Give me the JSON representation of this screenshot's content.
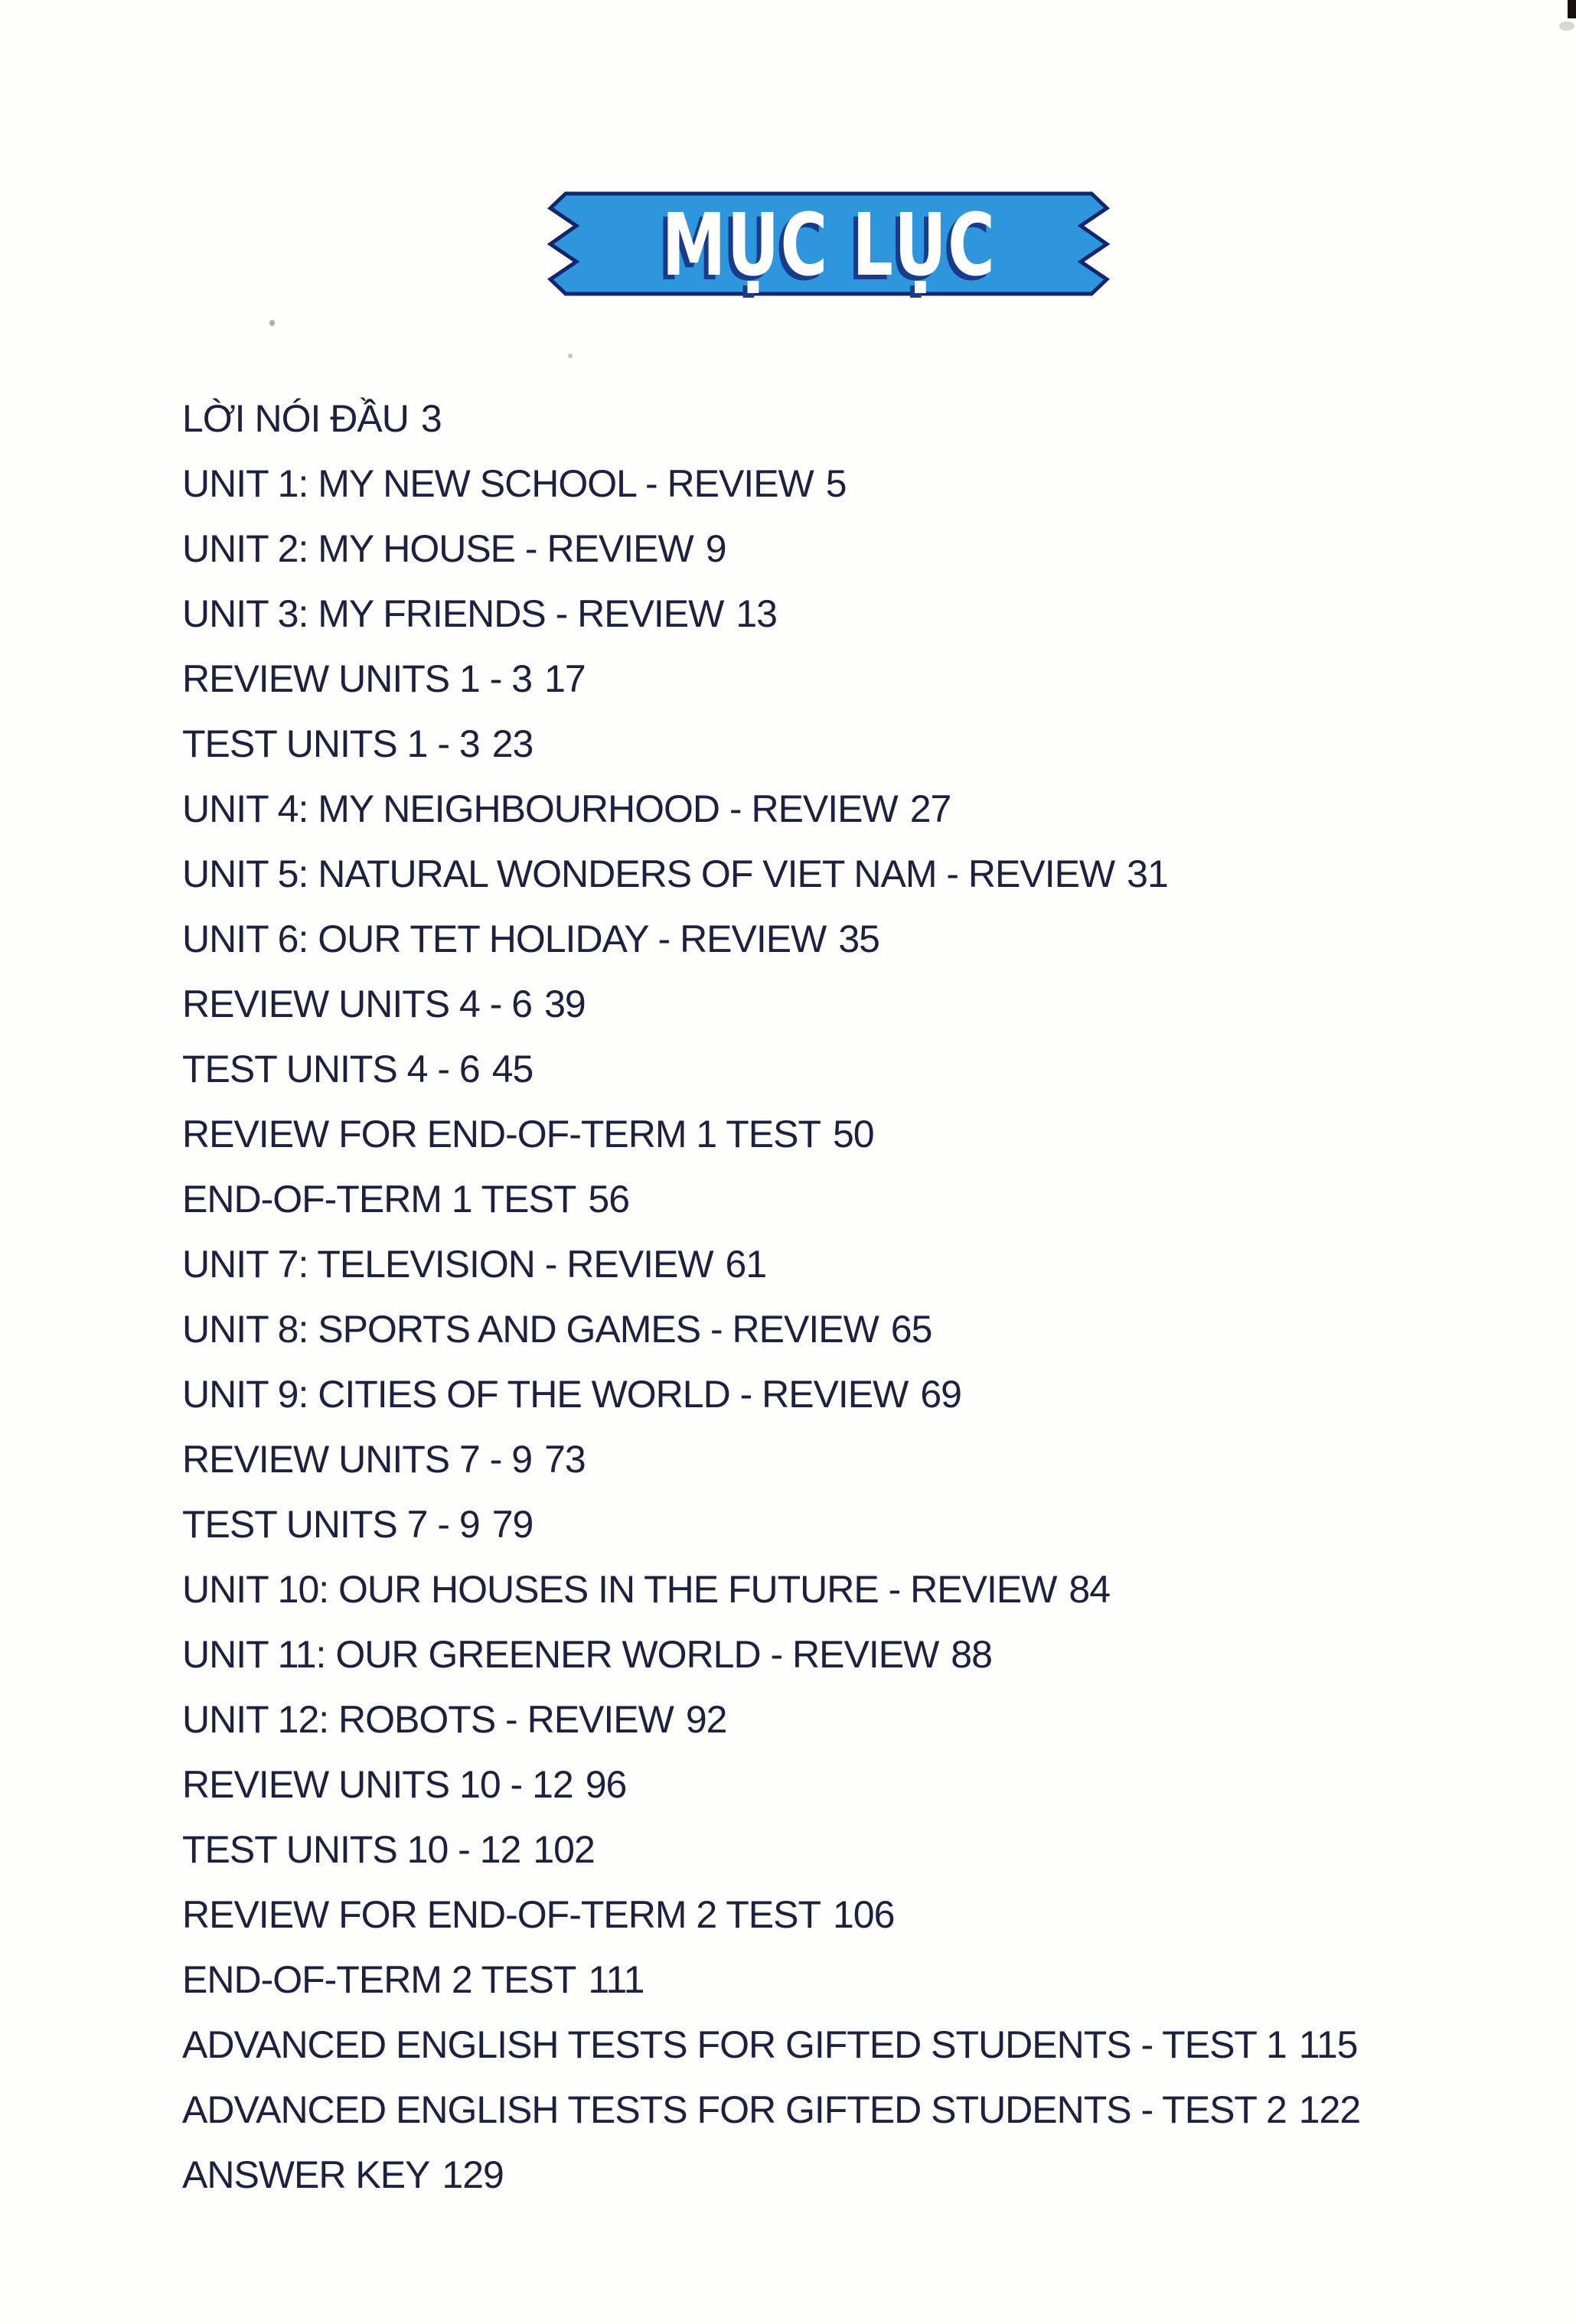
{
  "banner": {
    "title": "MỤC LỤC"
  },
  "colors": {
    "ribbon_fill": "#2e96dc",
    "ribbon_border": "#16246d",
    "banner_text": "#ffffff",
    "banner_text_shadow": "#1b3a8c",
    "body_text": "#1d2140"
  },
  "toc": {
    "entries": [
      {
        "label": "LỜI NÓI ĐẦU",
        "page": "3"
      },
      {
        "label": "UNIT 1: MY NEW SCHOOL - REVIEW",
        "page": "5"
      },
      {
        "label": "UNIT 2: MY HOUSE - REVIEW",
        "page": "9"
      },
      {
        "label": "UNIT 3: MY FRIENDS - REVIEW",
        "page": "13"
      },
      {
        "label": "REVIEW UNITS 1 - 3",
        "page": "17"
      },
      {
        "label": "TEST UNITS 1 - 3",
        "page": "23"
      },
      {
        "label": "UNIT 4: MY NEIGHBOURHOOD - REVIEW",
        "page": "27"
      },
      {
        "label": "UNIT 5: NATURAL WONDERS OF VIET NAM - REVIEW",
        "page": "31"
      },
      {
        "label": "UNIT 6: OUR TET HOLIDAY - REVIEW",
        "page": "35"
      },
      {
        "label": "REVIEW UNITS 4 - 6",
        "page": "39"
      },
      {
        "label": "TEST UNITS 4 - 6",
        "page": "45"
      },
      {
        "label": "REVIEW FOR END-OF-TERM 1 TEST",
        "page": "50"
      },
      {
        "label": "END-OF-TERM 1 TEST",
        "page": "56"
      },
      {
        "label": "UNIT 7: TELEVISION - REVIEW",
        "page": "61"
      },
      {
        "label": "UNIT 8: SPORTS AND GAMES - REVIEW",
        "page": "65"
      },
      {
        "label": "UNIT 9: CITIES OF THE WORLD - REVIEW",
        "page": "69"
      },
      {
        "label": "REVIEW UNITS 7 - 9",
        "page": "73"
      },
      {
        "label": "TEST UNITS 7 - 9",
        "page": "79"
      },
      {
        "label": "UNIT 10: OUR HOUSES IN THE FUTURE - REVIEW",
        "page": "84"
      },
      {
        "label": "UNIT 11: OUR GREENER WORLD - REVIEW",
        "page": "88"
      },
      {
        "label": "UNIT 12: ROBOTS - REVIEW",
        "page": "92"
      },
      {
        "label": "REVIEW UNITS 10 - 12",
        "page": "96"
      },
      {
        "label": "TEST UNITS 10 - 12",
        "page": "102"
      },
      {
        "label": "REVIEW FOR END-OF-TERM 2 TEST",
        "page": "106"
      },
      {
        "label": "END-OF-TERM 2 TEST",
        "page": "111"
      },
      {
        "label": "ADVANCED ENGLISH TESTS FOR GIFTED STUDENTS - TEST 1",
        "page": "115"
      },
      {
        "label": "ADVANCED ENGLISH TESTS FOR GIFTED STUDENTS - TEST 2",
        "page": "122"
      },
      {
        "label": "ANSWER KEY",
        "page": "129"
      }
    ]
  }
}
